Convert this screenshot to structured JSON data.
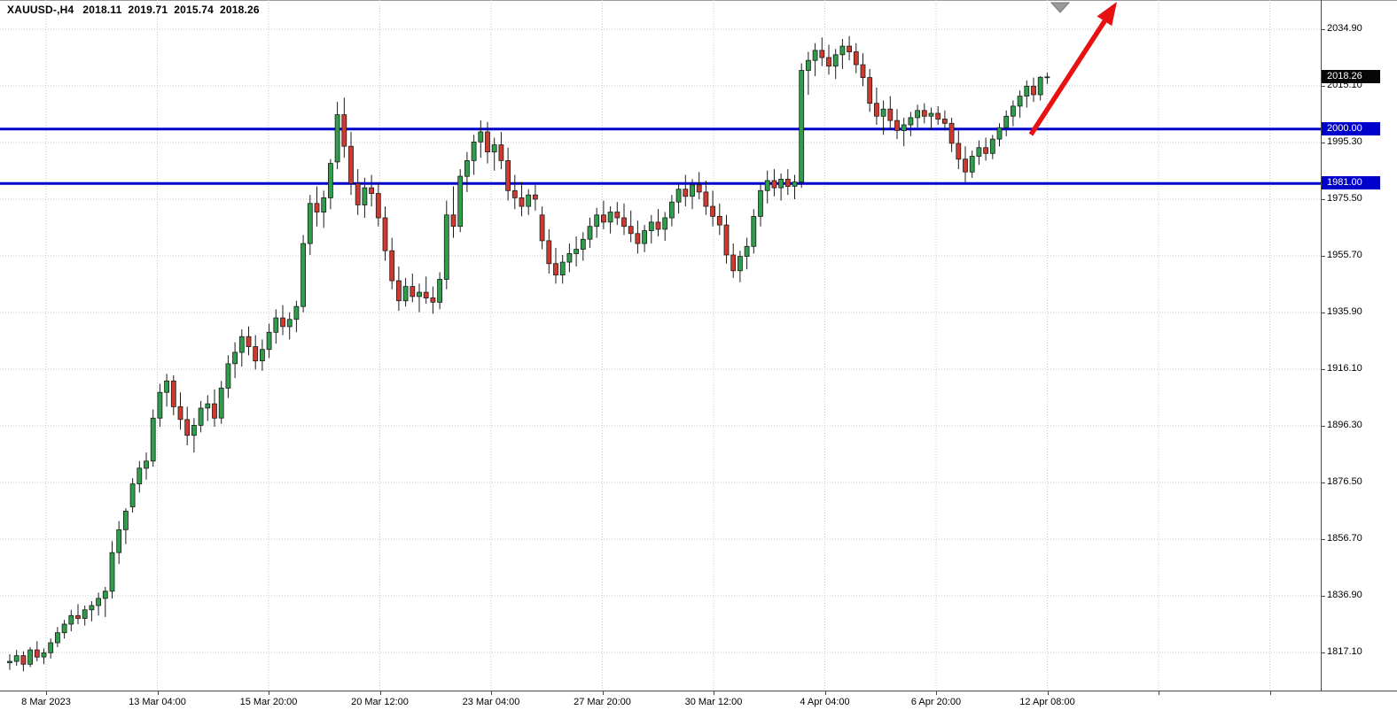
{
  "title": {
    "symbol_timeframe": "XAUUSD-,H4",
    "open": "2018.11",
    "high": "2019.71",
    "low": "2015.74",
    "close": "2018.26"
  },
  "colors": {
    "background": "#ffffff",
    "grid": "#c9c9c9",
    "bull": "#2e9e4c",
    "bear": "#cf3a30",
    "candle_outline": "#1c1c1c",
    "level_line": "#0000cd",
    "current_badge_bg": "#060606",
    "level_badge_bg": "#0000cd",
    "badge_text": "#ffffff",
    "axis_text": "#000000",
    "trend_arrow": "#e81010",
    "shift_marker": "#9a9a9a",
    "separator": "#4b4b4b"
  },
  "price_axis": {
    "badges": [
      {
        "label": "2018.26",
        "price": 2018.26,
        "type": "current"
      },
      {
        "label": "2000.00",
        "price": 2000.0,
        "type": "level"
      },
      {
        "label": "1981.00",
        "price": 1981.0,
        "type": "level"
      }
    ]
  },
  "chart_data": {
    "type": "candlestick",
    "title": "XAUUSD- H4 candlestick chart",
    "symbol": "XAUUSD-",
    "timeframe": "H4",
    "current_bar": {
      "open": 2018.11,
      "high": 2019.71,
      "low": 2015.74,
      "close": 2018.26
    },
    "ylim": [
      1817.1,
      2034.9
    ],
    "y_ticks": [
      2034.9,
      2015.1,
      1995.3,
      1975.5,
      1955.7,
      1935.9,
      1916.1,
      1896.3,
      1876.5,
      1856.7,
      1836.9,
      1817.1
    ],
    "x_ticks": [
      "8 Mar 2023",
      "13 Mar 04:00",
      "15 Mar 20:00",
      "20 Mar 12:00",
      "23 Mar 04:00",
      "27 Mar 20:00",
      "30 Mar 12:00",
      "4 Apr 04:00",
      "6 Apr 20:00",
      "12 Apr 08:00"
    ],
    "grid": true,
    "legend": false,
    "horizontal_levels": [
      2000.0,
      1981.0
    ],
    "annotations": [
      {
        "type": "arrow",
        "direction": "up-right",
        "color": "#e81010"
      },
      {
        "type": "shift-marker",
        "shape": "triangle-down",
        "color": "#9a9a9a"
      }
    ],
    "ohlc": [
      [
        1813.5,
        1816.5,
        1811,
        1814
      ],
      [
        1814,
        1818,
        1812.5,
        1816
      ],
      [
        1816,
        1817.5,
        1810.5,
        1813
      ],
      [
        1813,
        1819,
        1812,
        1818
      ],
      [
        1818,
        1821,
        1814,
        1815.5
      ],
      [
        1815.5,
        1818.5,
        1813,
        1817
      ],
      [
        1817,
        1822,
        1815,
        1820.5
      ],
      [
        1820.5,
        1826,
        1819,
        1824
      ],
      [
        1824,
        1828.5,
        1822,
        1827
      ],
      [
        1827,
        1832,
        1824.5,
        1830
      ],
      [
        1830,
        1834,
        1827,
        1829
      ],
      [
        1829,
        1833.5,
        1826.5,
        1832
      ],
      [
        1832,
        1835,
        1828,
        1833.5
      ],
      [
        1833.5,
        1838,
        1830,
        1836
      ],
      [
        1836,
        1840,
        1829.5,
        1838.5
      ],
      [
        1838.5,
        1856,
        1836,
        1852
      ],
      [
        1852,
        1863,
        1848,
        1860
      ],
      [
        1860,
        1867.5,
        1855,
        1866.5
      ],
      [
        1868,
        1878,
        1866,
        1876
      ],
      [
        1876,
        1884,
        1873,
        1881.5
      ],
      [
        1881.5,
        1887,
        1877.5,
        1884
      ],
      [
        1884,
        1902,
        1882,
        1899
      ],
      [
        1899,
        1911,
        1896,
        1908
      ],
      [
        1908,
        1914.5,
        1903,
        1912
      ],
      [
        1912,
        1914,
        1900,
        1903
      ],
      [
        1903,
        1908,
        1895,
        1898.5
      ],
      [
        1898.5,
        1903,
        1889.5,
        1893
      ],
      [
        1893,
        1899,
        1887,
        1896.5
      ],
      [
        1896.5,
        1905,
        1894,
        1902.5
      ],
      [
        1902.5,
        1907,
        1898,
        1904
      ],
      [
        1904,
        1909,
        1896,
        1899
      ],
      [
        1899,
        1912,
        1897,
        1909.5
      ],
      [
        1909.5,
        1921,
        1906,
        1918
      ],
      [
        1918,
        1925.5,
        1913,
        1922
      ],
      [
        1922,
        1930,
        1917,
        1927.5
      ],
      [
        1927.5,
        1931,
        1921,
        1924
      ],
      [
        1924,
        1928,
        1916,
        1919
      ],
      [
        1919,
        1926.5,
        1915.5,
        1923
      ],
      [
        1923,
        1932,
        1920,
        1929
      ],
      [
        1929,
        1937,
        1925,
        1934
      ],
      [
        1934,
        1938.5,
        1928,
        1931
      ],
      [
        1931,
        1936,
        1926.5,
        1933.5
      ],
      [
        1933.5,
        1940,
        1929,
        1938
      ],
      [
        1938,
        1963,
        1936,
        1960
      ],
      [
        1960,
        1977,
        1956,
        1974
      ],
      [
        1974,
        1980,
        1966,
        1971
      ],
      [
        1971,
        1978.5,
        1965.5,
        1976
      ],
      [
        1976,
        1989.5,
        1972,
        1988
      ],
      [
        1988.5,
        2009.5,
        1986,
        2005
      ],
      [
        2005,
        2011,
        1990,
        1994
      ],
      [
        1994,
        1999,
        1977,
        1981
      ],
      [
        1981,
        1986,
        1970,
        1973.5
      ],
      [
        1973.5,
        1983,
        1969,
        1979.5
      ],
      [
        1979.5,
        1984,
        1973,
        1977.5
      ],
      [
        1977.5,
        1981,
        1966,
        1969
      ],
      [
        1969,
        1973,
        1954,
        1957.5
      ],
      [
        1957.5,
        1962,
        1944,
        1947
      ],
      [
        1947,
        1952,
        1936.5,
        1940
      ],
      [
        1940,
        1948,
        1938,
        1945
      ],
      [
        1945,
        1949.5,
        1939.5,
        1941.5
      ],
      [
        1941.5,
        1946,
        1936,
        1943
      ],
      [
        1943,
        1948.5,
        1939,
        1941
      ],
      [
        1941,
        1945,
        1935.5,
        1939.5
      ],
      [
        1939.5,
        1950,
        1937,
        1947.5
      ],
      [
        1947.5,
        1975,
        1944,
        1970
      ],
      [
        1970,
        1980,
        1962,
        1966
      ],
      [
        1966,
        1986,
        1964,
        1983.5
      ],
      [
        1983.5,
        1992,
        1978,
        1989
      ],
      [
        1989,
        1998,
        1984,
        1995.5
      ],
      [
        1995.5,
        2003,
        1990,
        1999
      ],
      [
        1999,
        2002.5,
        1988,
        1992
      ],
      [
        1992,
        1997,
        1985.5,
        1994.5
      ],
      [
        1994.5,
        1999,
        1986,
        1989
      ],
      [
        1989,
        1993.5,
        1975,
        1978.5
      ],
      [
        1978.5,
        1984,
        1972,
        1976
      ],
      [
        1976,
        1981.5,
        1969.5,
        1973
      ],
      [
        1973,
        1979,
        1970,
        1977
      ],
      [
        1977,
        1980.5,
        1971.5,
        1975.5
      ],
      [
        1970,
        1973,
        1958,
        1961
      ],
      [
        1961,
        1965,
        1949.5,
        1953
      ],
      [
        1953,
        1958.5,
        1946,
        1949
      ],
      [
        1949,
        1956,
        1946,
        1953.5
      ],
      [
        1953.5,
        1960,
        1950,
        1956.5
      ],
      [
        1956.5,
        1962.5,
        1952,
        1958
      ],
      [
        1958,
        1964,
        1954,
        1961.5
      ],
      [
        1961.5,
        1969,
        1958.5,
        1966
      ],
      [
        1966,
        1972.5,
        1962,
        1970
      ],
      [
        1970,
        1975,
        1965,
        1967.5
      ],
      [
        1967.5,
        1973,
        1963.5,
        1971
      ],
      [
        1971,
        1974.5,
        1966.5,
        1969
      ],
      [
        1969,
        1974,
        1963,
        1966
      ],
      [
        1966,
        1971.5,
        1960.5,
        1963.5
      ],
      [
        1963.5,
        1968,
        1956.5,
        1960
      ],
      [
        1960,
        1966.5,
        1957,
        1964.5
      ],
      [
        1964.5,
        1970,
        1960,
        1967.5
      ],
      [
        1967.5,
        1972,
        1962.5,
        1965
      ],
      [
        1965,
        1971,
        1961,
        1969
      ],
      [
        1969,
        1977,
        1966,
        1974.5
      ],
      [
        1974.5,
        1981.5,
        1970.5,
        1979
      ],
      [
        1979,
        1984,
        1973,
        1976.5
      ],
      [
        1976.5,
        1982.5,
        1972,
        1980.5
      ],
      [
        1980.5,
        1985,
        1975.5,
        1978
      ],
      [
        1978,
        1982,
        1970,
        1973
      ],
      [
        1973,
        1978.5,
        1966,
        1969.5
      ],
      [
        1969.5,
        1974,
        1963,
        1966.5
      ],
      [
        1966.5,
        1970,
        1953,
        1956
      ],
      [
        1956,
        1960,
        1948,
        1950.5
      ],
      [
        1950.5,
        1957.5,
        1946.5,
        1955.5
      ],
      [
        1955.5,
        1962,
        1951,
        1959
      ],
      [
        1959,
        1972,
        1956.5,
        1969.5
      ],
      [
        1969.5,
        1981,
        1966,
        1978.5
      ],
      [
        1978.5,
        1985.5,
        1974,
        1982
      ],
      [
        1982,
        1986,
        1976.5,
        1979.5
      ],
      [
        1979.5,
        1984.5,
        1975,
        1982.5
      ],
      [
        1982.5,
        1986,
        1977,
        1980
      ],
      [
        1980,
        1984,
        1975.5,
        1981.5
      ],
      [
        1981.5,
        2023,
        1979.5,
        2020.5
      ],
      [
        2020.5,
        2027,
        2012,
        2024
      ],
      [
        2024,
        2030,
        2018.5,
        2027.5
      ],
      [
        2027.5,
        2032,
        2022,
        2025
      ],
      [
        2025,
        2029.5,
        2019,
        2022
      ],
      [
        2022,
        2028,
        2017.5,
        2026
      ],
      [
        2026,
        2031.5,
        2021,
        2029
      ],
      [
        2029,
        2032.5,
        2024,
        2027
      ],
      [
        2027,
        2030,
        2019.5,
        2022.5
      ],
      [
        2022.5,
        2026.5,
        2015,
        2018
      ],
      [
        2018,
        2021,
        2006,
        2009
      ],
      [
        2009,
        2014.5,
        2001.5,
        2004.5
      ],
      [
        2004.5,
        2010,
        1998,
        2007
      ],
      [
        2007,
        2011.5,
        2000,
        2003
      ],
      [
        2003,
        2007,
        1996.5,
        1999.5
      ],
      [
        1999.5,
        2004,
        1994,
        2001.5
      ],
      [
        2001.5,
        2006,
        1997.5,
        2004
      ],
      [
        2004,
        2008.5,
        2000.5,
        2006.5
      ],
      [
        2006.5,
        2009,
        2002,
        2004.5
      ],
      [
        2004.5,
        2007.5,
        2000,
        2005.5
      ],
      [
        2005.5,
        2008,
        2001.5,
        2003.5
      ],
      [
        2003.5,
        2006.5,
        1999.5,
        2002
      ],
      [
        2002,
        2004,
        1992,
        1995
      ],
      [
        1995,
        1999.5,
        1986,
        1989.5
      ],
      [
        1989.5,
        1994,
        1981.5,
        1985
      ],
      [
        1985,
        1992.5,
        1983,
        1990.5
      ],
      [
        1990.5,
        1996,
        1987.5,
        1993.5
      ],
      [
        1993.5,
        1997,
        1989,
        1991.5
      ],
      [
        1991.5,
        1998,
        1989.5,
        1996.5
      ],
      [
        1996.5,
        2002,
        1994,
        2000.5
      ],
      [
        2000.5,
        2006.5,
        1997.5,
        2004.5
      ],
      [
        2004.5,
        2010,
        2001,
        2008
      ],
      [
        2008,
        2013.5,
        2004,
        2011.5
      ],
      [
        2011.5,
        2017,
        2007.5,
        2015
      ],
      [
        2015,
        2018,
        2009.5,
        2012
      ],
      [
        2012,
        2018.5,
        2010,
        2018.11
      ],
      [
        2018.11,
        2019.71,
        2015.74,
        2018.26
      ]
    ]
  }
}
